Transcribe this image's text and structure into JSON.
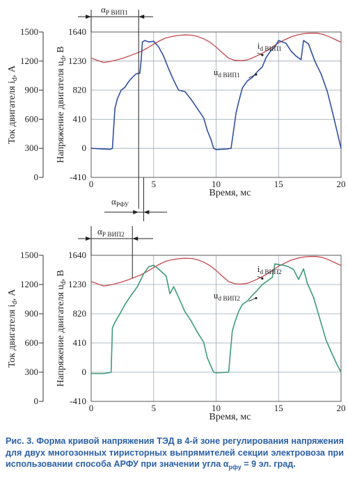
{
  "colors": {
    "current_line": "#c6474d",
    "voltage_panel1": "#2f4f9f",
    "voltage_panel2": "#3d9a78",
    "grid": "#9aa8b2",
    "caption": "#2b5fa8"
  },
  "chart_data": [
    {
      "type": "line",
      "xlabel": "Время, мс",
      "ylabel_left": "Ток двигателя i",
      "ylabel_left_sub": "d",
      "ylabel_left_unit": ", А",
      "ylabel_right": "Напряжение двигателя u",
      "ylabel_right_sub": "d",
      "ylabel_right_unit": ", В",
      "xlim": [
        0,
        20
      ],
      "xticks": [
        "0",
        "5",
        "10",
        "15",
        "20"
      ],
      "ylim_current": [
        0,
        1500
      ],
      "ylim_voltage": [
        -410,
        1640
      ],
      "yticks_current": [
        "0",
        "300",
        "600",
        "900",
        "1200",
        "1500"
      ],
      "yticks_voltage": [
        "-410",
        "0",
        "410",
        "820",
        "1230",
        "1640"
      ],
      "grid": true,
      "annotations": {
        "alpha_top": "α",
        "alpha_top_sub": "Р ВИП1",
        "alpha_bottom": "α",
        "alpha_bottom_sub": "РФУ"
      },
      "series": [
        {
          "name": "i",
          "name_sub": "d ВИП1",
          "axis": "current",
          "x": [
            0,
            0.5,
            1,
            1.5,
            2,
            2.5,
            3,
            3.5,
            4,
            4.5,
            5,
            5.5,
            6,
            6.5,
            7,
            7.5,
            8,
            8.5,
            9,
            9.5,
            10,
            10.5,
            11,
            11.5,
            12,
            12.5,
            13,
            13.5,
            14,
            14.5,
            15,
            15.5,
            16,
            16.5,
            17,
            17.5,
            18,
            18.5,
            19,
            19.5,
            20
          ],
          "y": [
            1230,
            1208,
            1185,
            1195,
            1210,
            1228,
            1250,
            1275,
            1300,
            1335,
            1375,
            1410,
            1440,
            1455,
            1465,
            1470,
            1468,
            1455,
            1430,
            1395,
            1345,
            1285,
            1230,
            1208,
            1204,
            1212,
            1238,
            1268,
            1302,
            1345,
            1388,
            1420,
            1450,
            1470,
            1482,
            1488,
            1488,
            1478,
            1455,
            1425,
            1395
          ]
        },
        {
          "name": "u",
          "name_sub": "d ВИП1",
          "axis": "voltage",
          "x": [
            0,
            1,
            1.5,
            1.7,
            1.9,
            2.1,
            2.4,
            2.7,
            3.0,
            3.3,
            3.6,
            3.9,
            4.0,
            4.1,
            4.3,
            4.6,
            5.0,
            5.4,
            5.8,
            6.2,
            6.6,
            7.0,
            7.5,
            8.0,
            8.5,
            9.0,
            9.3,
            9.6,
            9.8,
            10.0,
            10.3,
            10.8,
            11.2,
            11.6,
            11.8,
            12.1,
            12.5,
            12.9,
            13.3,
            13.7,
            14.0,
            14.4,
            14.7,
            15.0,
            15.3,
            15.6,
            16.0,
            16.4,
            16.8,
            17.0,
            17.4,
            17.9,
            18.4,
            18.9,
            19.4,
            20.0
          ],
          "y": [
            0,
            -10,
            -15,
            0,
            560,
            700,
            820,
            860,
            940,
            1000,
            1050,
            1060,
            1240,
            1500,
            1520,
            1500,
            1510,
            1430,
            1300,
            1120,
            960,
            820,
            800,
            690,
            560,
            430,
            250,
            120,
            0,
            -20,
            -15,
            -10,
            0,
            500,
            650,
            850,
            950,
            1000,
            1080,
            1150,
            1280,
            1380,
            1430,
            1520,
            1500,
            1480,
            1370,
            1300,
            1250,
            1520,
            1470,
            1230,
            1050,
            800,
            450,
            0
          ]
        }
      ]
    },
    {
      "type": "line",
      "xlabel": "Время, мс",
      "ylabel_left": "Ток двигателя i",
      "ylabel_left_sub": "d",
      "ylabel_left_unit": ", А",
      "ylabel_right": "Напряжение двигателя u",
      "ylabel_right_sub": "d",
      "ylabel_right_unit": ", В",
      "xlim": [
        0,
        20
      ],
      "xticks": [
        "0",
        "5",
        "10",
        "15",
        "20"
      ],
      "ylim_current": [
        0,
        1500
      ],
      "ylim_voltage": [
        -410,
        1640
      ],
      "yticks_current": [
        "0",
        "300",
        "600",
        "900",
        "1200",
        "1500"
      ],
      "yticks_voltage": [
        "-410",
        "0",
        "410",
        "820",
        "1230",
        "1640"
      ],
      "grid": true,
      "annotations": {
        "alpha_top": "α",
        "alpha_top_sub": "Р ВИП2"
      },
      "series": [
        {
          "name": "i",
          "name_sub": "d ВИП2",
          "axis": "current",
          "x": [
            0,
            0.5,
            1,
            1.5,
            2,
            2.5,
            3,
            3.5,
            4,
            4.5,
            5,
            5.5,
            6,
            6.5,
            7,
            7.5,
            8,
            8.5,
            9,
            9.5,
            10,
            10.5,
            11,
            11.5,
            12,
            12.5,
            13,
            13.5,
            14,
            14.5,
            15,
            15.5,
            16,
            16.5,
            17,
            17.5,
            18,
            18.5,
            19,
            19.5,
            20
          ],
          "y": [
            1230,
            1208,
            1185,
            1195,
            1210,
            1228,
            1250,
            1275,
            1300,
            1335,
            1375,
            1410,
            1440,
            1455,
            1465,
            1470,
            1468,
            1455,
            1430,
            1395,
            1345,
            1285,
            1230,
            1208,
            1204,
            1212,
            1238,
            1268,
            1302,
            1345,
            1388,
            1420,
            1450,
            1470,
            1482,
            1488,
            1488,
            1478,
            1455,
            1425,
            1395
          ]
        },
        {
          "name": "u",
          "name_sub": "d ВИП2",
          "axis": "voltage",
          "x": [
            0,
            1,
            1.4,
            1.6,
            1.7,
            1.9,
            2.3,
            2.7,
            3.2,
            3.7,
            4.2,
            4.6,
            5.0,
            5.5,
            6.0,
            6.3,
            6.6,
            7.0,
            7.5,
            8.0,
            8.5,
            9.0,
            9.3,
            9.6,
            9.8,
            10.0,
            10.5,
            11.0,
            11.3,
            11.5,
            11.8,
            12.1,
            12.5,
            12.9,
            13.3,
            13.7,
            14.1,
            14.5,
            14.7,
            15.0,
            15.4,
            15.8,
            16.2,
            16.6,
            17.0,
            17.3,
            17.8,
            18.3,
            18.8,
            19.3,
            19.7,
            20.0
          ],
          "y": [
            -20,
            -20,
            -10,
            0,
            620,
            700,
            820,
            950,
            1080,
            1200,
            1380,
            1480,
            1500,
            1430,
            1350,
            1100,
            1200,
            1050,
            850,
            720,
            560,
            420,
            200,
            80,
            0,
            -10,
            -5,
            0,
            580,
            700,
            850,
            950,
            1000,
            1080,
            1150,
            1230,
            1280,
            1330,
            1520,
            1510,
            1500,
            1480,
            1440,
            1300,
            1450,
            1250,
            1050,
            750,
            450,
            250,
            100,
            0
          ]
        }
      ]
    }
  ],
  "caption": {
    "text": "Рис. 3. Форма кривой напряжения ТЭД в 4-й зоне регулирования напряжения для двух многозонных тиристорных выпрямителей секции электровоза при использовании способа АРФУ при значении угла α",
    "alpha_sub": "рфу",
    "text_end": " = 9 эл. град."
  }
}
